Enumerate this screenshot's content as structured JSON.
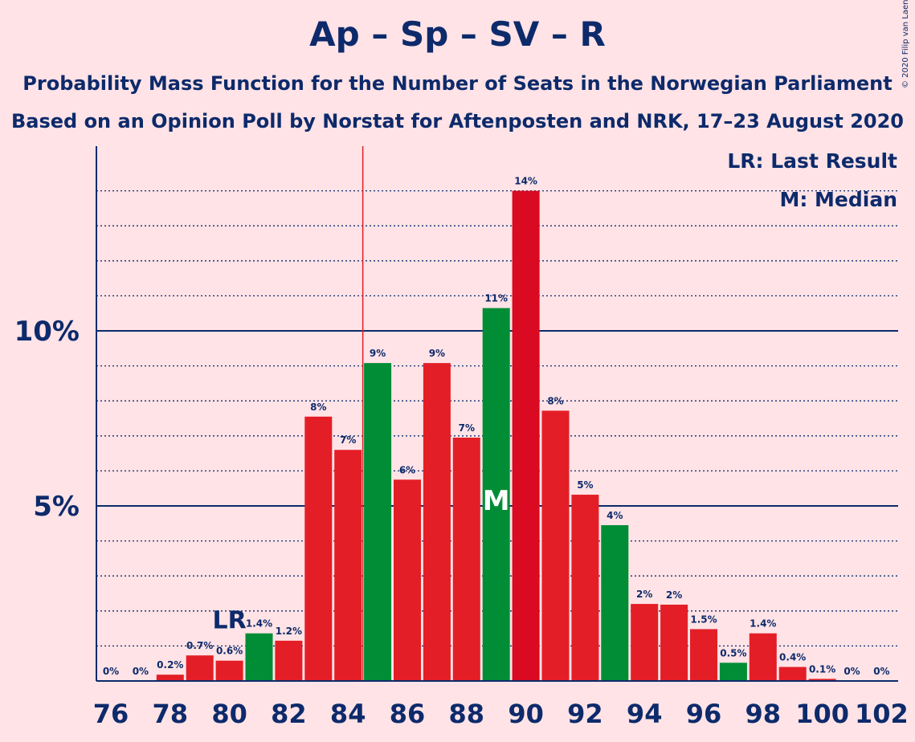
{
  "title": "Ap – Sp – SV – R",
  "subtitle_1": "Probability Mass Function for the Number of Seats in the Norwegian Parliament",
  "subtitle_2": "Based on an Opinion Poll by Norstat for Aftenposten and NRK, 17–23 August 2020",
  "legend": {
    "last_result": "LR: Last Result",
    "median": "M: Median"
  },
  "copyright": "© 2020 Filip van Laenen",
  "colors": {
    "background": "#ffe3e6",
    "red_bar": "#e41e26",
    "green_bar": "#008d36",
    "highlight_red": "#d90a21",
    "text": "#0d2a6b",
    "majority_line": "#e41e26"
  },
  "chart_data": {
    "type": "bar",
    "xlabel": "",
    "ylabel": "",
    "ylim": [
      0,
      15.3
    ],
    "y_ticks": [
      {
        "value": 5,
        "label": "5%"
      },
      {
        "value": 10,
        "label": "10%"
      }
    ],
    "x_tick_labels": [
      "76",
      "78",
      "80",
      "82",
      "84",
      "86",
      "88",
      "90",
      "92",
      "94",
      "96",
      "98",
      "100",
      "102"
    ],
    "majority_line_at": 84.5,
    "last_result": {
      "seat": 80,
      "label": "LR"
    },
    "median": {
      "seat": 89,
      "label": "M"
    },
    "bars": [
      {
        "seat": 76,
        "value": 0,
        "label": "0%",
        "color": "red"
      },
      {
        "seat": 77,
        "value": 0,
        "label": "0%",
        "color": "red"
      },
      {
        "seat": 78,
        "value": 0.18,
        "label": "0.2%",
        "color": "red"
      },
      {
        "seat": 79,
        "value": 0.73,
        "label": "0.7%",
        "color": "red"
      },
      {
        "seat": 80,
        "value": 0.58,
        "label": "0.6%",
        "color": "red"
      },
      {
        "seat": 81,
        "value": 1.36,
        "label": "1.4%",
        "color": "green"
      },
      {
        "seat": 82,
        "value": 1.15,
        "label": "1.2%",
        "color": "red"
      },
      {
        "seat": 83,
        "value": 7.55,
        "label": "8%",
        "color": "red"
      },
      {
        "seat": 84,
        "value": 6.6,
        "label": "7%",
        "color": "red"
      },
      {
        "seat": 85,
        "value": 9.08,
        "label": "9%",
        "color": "green"
      },
      {
        "seat": 86,
        "value": 5.75,
        "label": "6%",
        "color": "red"
      },
      {
        "seat": 87,
        "value": 9.08,
        "label": "9%",
        "color": "red"
      },
      {
        "seat": 88,
        "value": 6.95,
        "label": "7%",
        "color": "red"
      },
      {
        "seat": 89,
        "value": 10.65,
        "label": "11%",
        "color": "green"
      },
      {
        "seat": 90,
        "value": 14.0,
        "label": "14%",
        "color": "darkred"
      },
      {
        "seat": 91,
        "value": 7.72,
        "label": "8%",
        "color": "red"
      },
      {
        "seat": 92,
        "value": 5.32,
        "label": "5%",
        "color": "red"
      },
      {
        "seat": 93,
        "value": 4.45,
        "label": "4%",
        "color": "green"
      },
      {
        "seat": 94,
        "value": 2.2,
        "label": "2%",
        "color": "red"
      },
      {
        "seat": 95,
        "value": 2.18,
        "label": "2%",
        "color": "red"
      },
      {
        "seat": 96,
        "value": 1.48,
        "label": "1.5%",
        "color": "red"
      },
      {
        "seat": 97,
        "value": 0.52,
        "label": "0.5%",
        "color": "green"
      },
      {
        "seat": 98,
        "value": 1.36,
        "label": "1.4%",
        "color": "red"
      },
      {
        "seat": 99,
        "value": 0.4,
        "label": "0.4%",
        "color": "red"
      },
      {
        "seat": 100,
        "value": 0.06,
        "label": "0.1%",
        "color": "red"
      },
      {
        "seat": 101,
        "value": 0,
        "label": "0%",
        "color": "red"
      },
      {
        "seat": 102,
        "value": 0,
        "label": "0%",
        "color": "red"
      }
    ]
  }
}
